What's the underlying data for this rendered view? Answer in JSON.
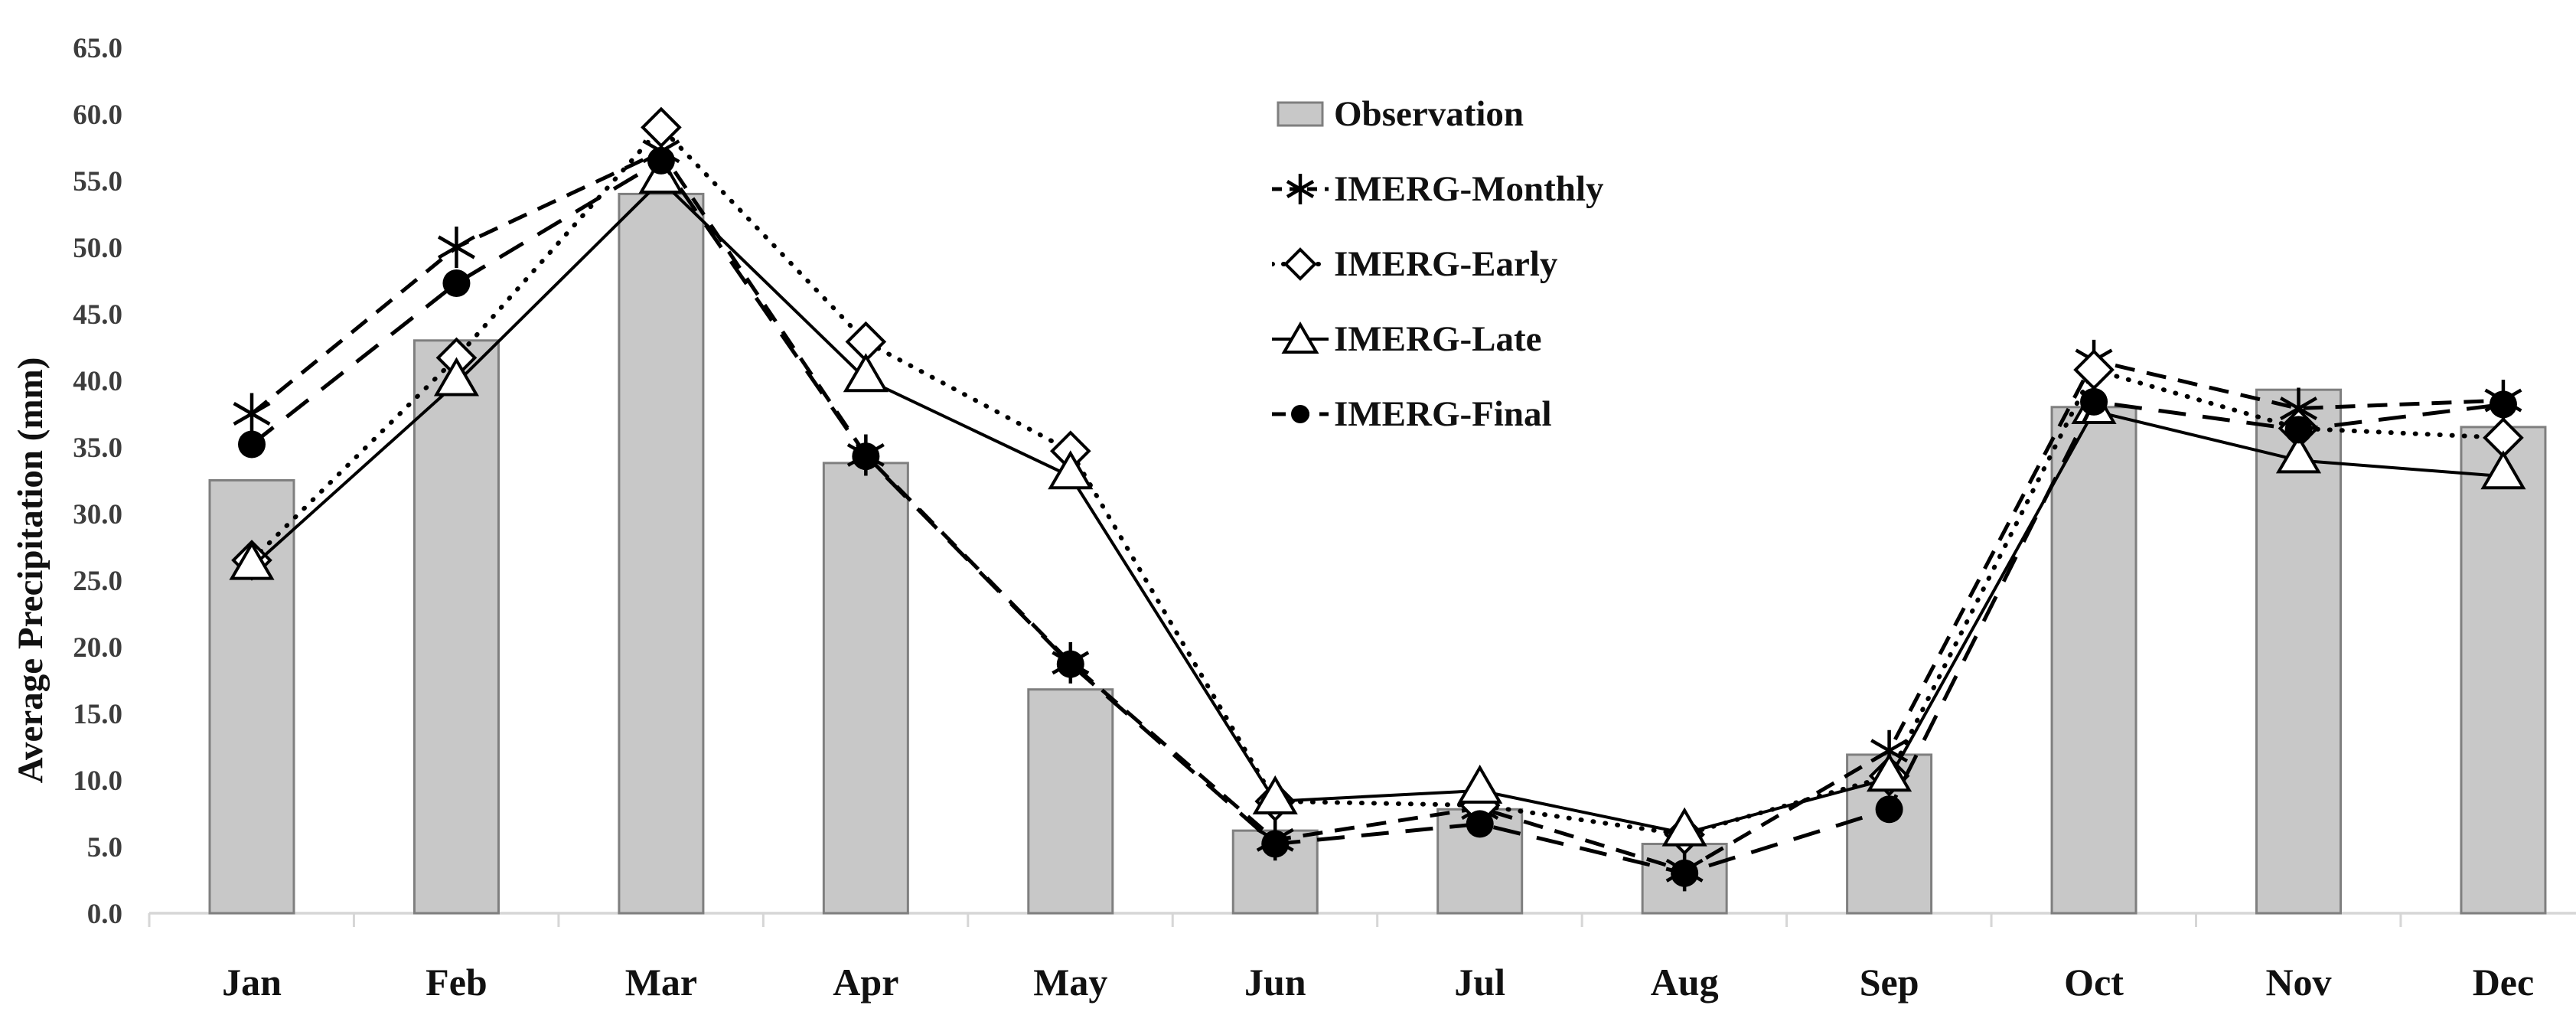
{
  "chart_data": {
    "type": "combo-bar-line",
    "categories": [
      "Jan",
      "Feb",
      "Mar",
      "Apr",
      "May",
      "Jun",
      "Jul",
      "Aug",
      "Sep",
      "Oct",
      "Nov",
      "Dec"
    ],
    "bar_series": {
      "name": "Observation",
      "values": [
        32.5,
        43.0,
        54.0,
        33.8,
        16.8,
        6.2,
        7.8,
        5.2,
        11.9,
        38.0,
        39.3,
        36.5
      ]
    },
    "line_series": [
      {
        "name": "IMERG-Monthly",
        "marker": "star",
        "dash": "dash",
        "values": [
          37.5,
          50.0,
          57.2,
          34.4,
          18.8,
          5.5,
          7.9,
          3.2,
          12.2,
          41.5,
          37.9,
          38.5
        ]
      },
      {
        "name": "IMERG-Early",
        "marker": "diamond-open",
        "dash": "dot",
        "values": [
          26.5,
          41.7,
          59.0,
          42.9,
          34.7,
          8.4,
          8.1,
          5.9,
          10.3,
          40.8,
          36.4,
          35.7
        ]
      },
      {
        "name": "IMERG-Late",
        "marker": "triangle-open",
        "dash": "solid",
        "values": [
          26.0,
          39.8,
          55.0,
          40.1,
          32.8,
          8.4,
          9.2,
          6.0,
          10.1,
          37.7,
          34.0,
          32.8
        ]
      },
      {
        "name": "IMERG-Final",
        "marker": "circle-filled",
        "dash": "long-dash",
        "values": [
          35.2,
          47.3,
          56.5,
          34.3,
          18.7,
          5.2,
          6.7,
          3.0,
          7.8,
          38.4,
          36.3,
          38.2
        ]
      }
    ],
    "title": "",
    "xlabel": "",
    "ylabel": "Average Precipitation (mm)",
    "ylim": [
      0,
      65
    ],
    "ytick_step": 5,
    "ytick_decimals": 1,
    "grid": false,
    "legend_position": "inside-top-center",
    "colors": {
      "bar_fill": "#c8c8c8",
      "bar_border": "#7f7f7f",
      "line": "#000000",
      "axis_line": "#d6d6d6",
      "tick_label": "#3d3d3d",
      "month_label": "#111111"
    }
  }
}
